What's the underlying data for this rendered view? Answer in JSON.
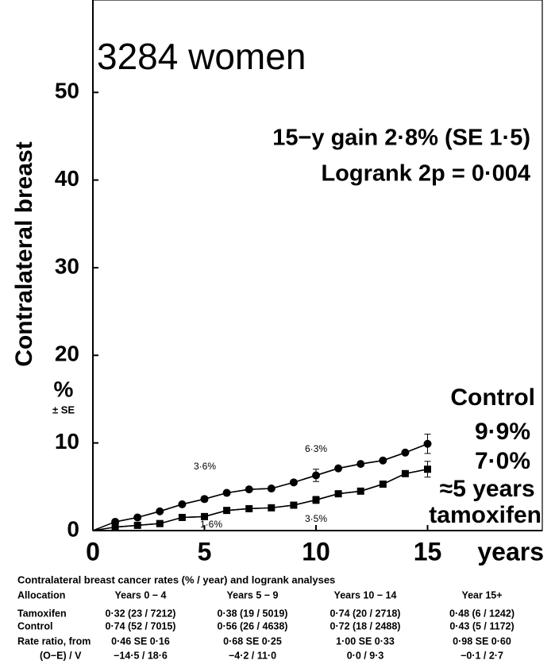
{
  "chart_data": {
    "type": "line",
    "title": "3284 women",
    "subtitle": [
      "15−y gain 2·8% (SE 1·5)",
      "Logrank 2p = 0·004"
    ],
    "ylabel": "Contralateral breast",
    "yunit": [
      "%",
      "± SE"
    ],
    "xlabel": "years",
    "xlim": [
      0,
      20
    ],
    "ylim": [
      0,
      60
    ],
    "xticks": [
      0,
      5,
      10,
      15
    ],
    "yticks": [
      0,
      10,
      20,
      30,
      40,
      50
    ],
    "x": [
      1,
      2,
      3,
      4,
      5,
      6,
      7,
      8,
      9,
      10,
      11,
      12,
      13,
      14,
      15
    ],
    "series": [
      {
        "name": "Control",
        "color": "#000000",
        "marker": "circle",
        "values": [
          1.0,
          1.5,
          2.2,
          3.0,
          3.6,
          4.3,
          4.7,
          4.8,
          5.5,
          6.3,
          7.1,
          7.6,
          8.0,
          8.9,
          9.9
        ],
        "errors": [
          null,
          null,
          null,
          null,
          0.3,
          null,
          null,
          null,
          null,
          0.7,
          null,
          null,
          null,
          null,
          1.1
        ]
      },
      {
        "name": "≈5 years tamoxifen",
        "color": "#000000",
        "marker": "square",
        "values": [
          0.4,
          0.6,
          0.8,
          1.5,
          1.6,
          2.3,
          2.5,
          2.6,
          2.9,
          3.5,
          4.2,
          4.5,
          5.3,
          6.5,
          7.0
        ],
        "errors": [
          null,
          null,
          null,
          null,
          null,
          null,
          null,
          null,
          null,
          0.4,
          null,
          null,
          null,
          null,
          0.9
        ]
      }
    ],
    "annotations": [
      "3·6%",
      "6·3%",
      "1·6%",
      "3·5%",
      "9·9%",
      "7·0%"
    ]
  },
  "table": {
    "title": "Contralateral breast cancer rates (% / year) and logrank analyses",
    "rows": [
      [
        "Allocation",
        "Years 0 − 4",
        "Years 5 − 9",
        "Years 10 − 14",
        "Year 15+"
      ],
      [
        "Tamoxifen",
        "0·32 (23 / 7212)",
        "0·38 (19 / 5019)",
        "0·74 (20 / 2718)",
        "0·48 (6 / 1242)"
      ],
      [
        "Control",
        "0·74 (52 / 7015)",
        "0·56 (26 / 4638)",
        "0·72 (18 / 2488)",
        "0·43 (5 / 1172)"
      ],
      [
        "Rate ratio, from",
        "0·46 SE 0·16",
        "0·68 SE 0·25",
        "1·00 SE 0·33",
        "0·98 SE 0·60"
      ],
      [
        "(O−E) / V",
        "−14·5 / 18·6",
        "−4·2 / 11·0",
        "0·0 / 9·3",
        "−0·1 / 2·7"
      ]
    ]
  }
}
